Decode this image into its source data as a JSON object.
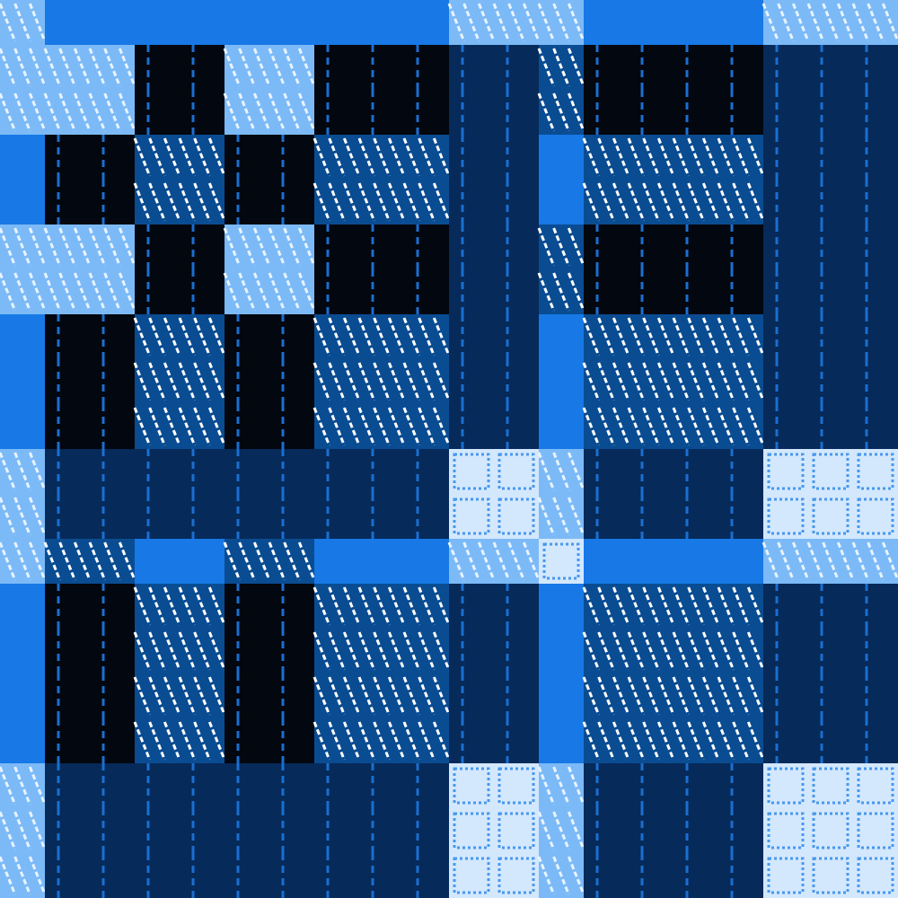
{
  "chart_data": {
    "type": "heatmap",
    "tick_labels": false,
    "xlim": [
      0,
      20
    ],
    "ylim": [
      0,
      20
    ],
    "zlim": [
      0,
      5
    ],
    "cells": [
      [
        4,
        3,
        3,
        3,
        3,
        3,
        3,
        3,
        3,
        3,
        4,
        4,
        4,
        3,
        3,
        3,
        3,
        4,
        4,
        4
      ],
      [
        4,
        4,
        4,
        0,
        0,
        4,
        4,
        0,
        0,
        0,
        1,
        1,
        2,
        0,
        0,
        0,
        0,
        1,
        1,
        1
      ],
      [
        4,
        4,
        4,
        0,
        0,
        4,
        4,
        0,
        0,
        0,
        1,
        1,
        2,
        0,
        0,
        0,
        0,
        1,
        1,
        1
      ],
      [
        3,
        0,
        0,
        2,
        2,
        0,
        0,
        2,
        2,
        2,
        1,
        1,
        3,
        2,
        2,
        2,
        2,
        1,
        1,
        1
      ],
      [
        3,
        0,
        0,
        2,
        2,
        0,
        0,
        2,
        2,
        2,
        1,
        1,
        3,
        2,
        2,
        2,
        2,
        1,
        1,
        1
      ],
      [
        4,
        4,
        4,
        0,
        0,
        4,
        4,
        0,
        0,
        0,
        1,
        1,
        2,
        0,
        0,
        0,
        0,
        1,
        1,
        1
      ],
      [
        4,
        4,
        4,
        0,
        0,
        4,
        4,
        0,
        0,
        0,
        1,
        1,
        2,
        0,
        0,
        0,
        0,
        1,
        1,
        1
      ],
      [
        3,
        0,
        0,
        2,
        2,
        0,
        0,
        2,
        2,
        2,
        1,
        1,
        3,
        2,
        2,
        2,
        2,
        1,
        1,
        1
      ],
      [
        3,
        0,
        0,
        2,
        2,
        0,
        0,
        2,
        2,
        2,
        1,
        1,
        3,
        2,
        2,
        2,
        2,
        1,
        1,
        1
      ],
      [
        3,
        0,
        0,
        2,
        2,
        0,
        0,
        2,
        2,
        2,
        1,
        1,
        3,
        2,
        2,
        2,
        2,
        1,
        1,
        1
      ],
      [
        4,
        1,
        1,
        1,
        1,
        1,
        1,
        1,
        1,
        1,
        5,
        5,
        4,
        1,
        1,
        1,
        1,
        5,
        5,
        5
      ],
      [
        4,
        1,
        1,
        1,
        1,
        1,
        1,
        1,
        1,
        1,
        5,
        5,
        4,
        1,
        1,
        1,
        1,
        5,
        5,
        5
      ],
      [
        4,
        2,
        2,
        3,
        3,
        2,
        2,
        3,
        3,
        3,
        4,
        4,
        5,
        3,
        3,
        3,
        3,
        4,
        4,
        4
      ],
      [
        3,
        0,
        0,
        2,
        2,
        0,
        0,
        2,
        2,
        2,
        1,
        1,
        3,
        2,
        2,
        2,
        2,
        1,
        1,
        1
      ],
      [
        3,
        0,
        0,
        2,
        2,
        0,
        0,
        2,
        2,
        2,
        1,
        1,
        3,
        2,
        2,
        2,
        2,
        1,
        1,
        1
      ],
      [
        3,
        0,
        0,
        2,
        2,
        0,
        0,
        2,
        2,
        2,
        1,
        1,
        3,
        2,
        2,
        2,
        2,
        1,
        1,
        1
      ],
      [
        3,
        0,
        0,
        2,
        2,
        0,
        0,
        2,
        2,
        2,
        1,
        1,
        3,
        2,
        2,
        2,
        2,
        1,
        1,
        1
      ],
      [
        4,
        1,
        1,
        1,
        1,
        1,
        1,
        1,
        1,
        1,
        5,
        5,
        4,
        1,
        1,
        1,
        1,
        5,
        5,
        5
      ],
      [
        4,
        1,
        1,
        1,
        1,
        1,
        1,
        1,
        1,
        1,
        5,
        5,
        4,
        1,
        1,
        1,
        1,
        5,
        5,
        5
      ],
      [
        4,
        1,
        1,
        1,
        1,
        1,
        1,
        1,
        1,
        1,
        5,
        5,
        4,
        1,
        1,
        1,
        1,
        5,
        5,
        5
      ]
    ]
  }
}
